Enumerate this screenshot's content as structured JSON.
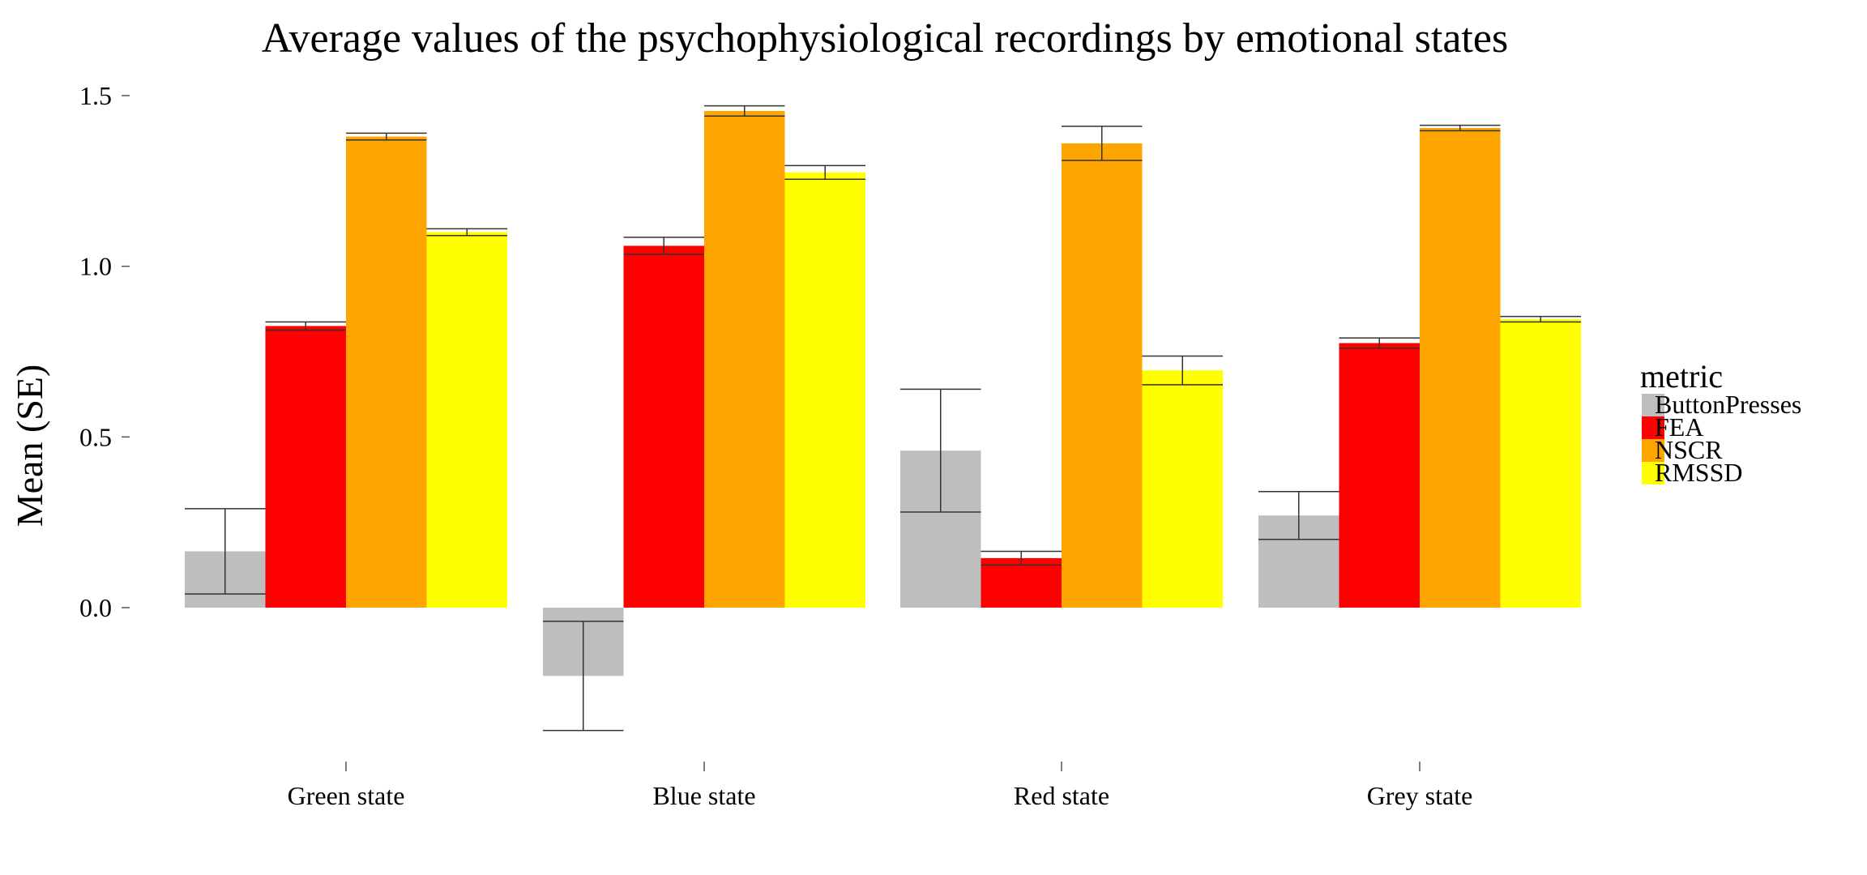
{
  "chart_data": {
    "type": "bar",
    "title": "Average values of the psychophysiological recordings by emotional states",
    "xlabel": "",
    "ylabel": "Mean (SE)",
    "ylim": [
      -0.48,
      1.55
    ],
    "yticks": [
      0.0,
      0.5,
      1.0,
      1.5
    ],
    "ytick_labels": [
      "0.0",
      "0.5",
      "1.0",
      "1.5"
    ],
    "grid": false,
    "legend_position": "right",
    "legend_title": "metric",
    "categories": [
      "Green state",
      "Blue state",
      "Red state",
      "Grey state"
    ],
    "series": [
      {
        "name": "ButtonPresses",
        "color": "#bebebe",
        "values": [
          0.165,
          -0.2,
          0.46,
          0.27
        ],
        "error": [
          0.125,
          0.16,
          0.18,
          0.07
        ]
      },
      {
        "name": "FEA",
        "color": "#ff0000",
        "values": [
          0.825,
          1.06,
          0.145,
          0.775
        ],
        "error": [
          0.012,
          0.025,
          0.02,
          0.015
        ]
      },
      {
        "name": "NSCR",
        "color": "#ffa500",
        "values": [
          1.38,
          1.455,
          1.36,
          1.405
        ],
        "error": [
          0.01,
          0.015,
          0.05,
          0.008
        ]
      },
      {
        "name": "RMSSD",
        "color": "#ffff00",
        "values": [
          1.1,
          1.275,
          0.695,
          0.845
        ],
        "error": [
          0.01,
          0.02,
          0.042,
          0.008
        ]
      }
    ]
  }
}
